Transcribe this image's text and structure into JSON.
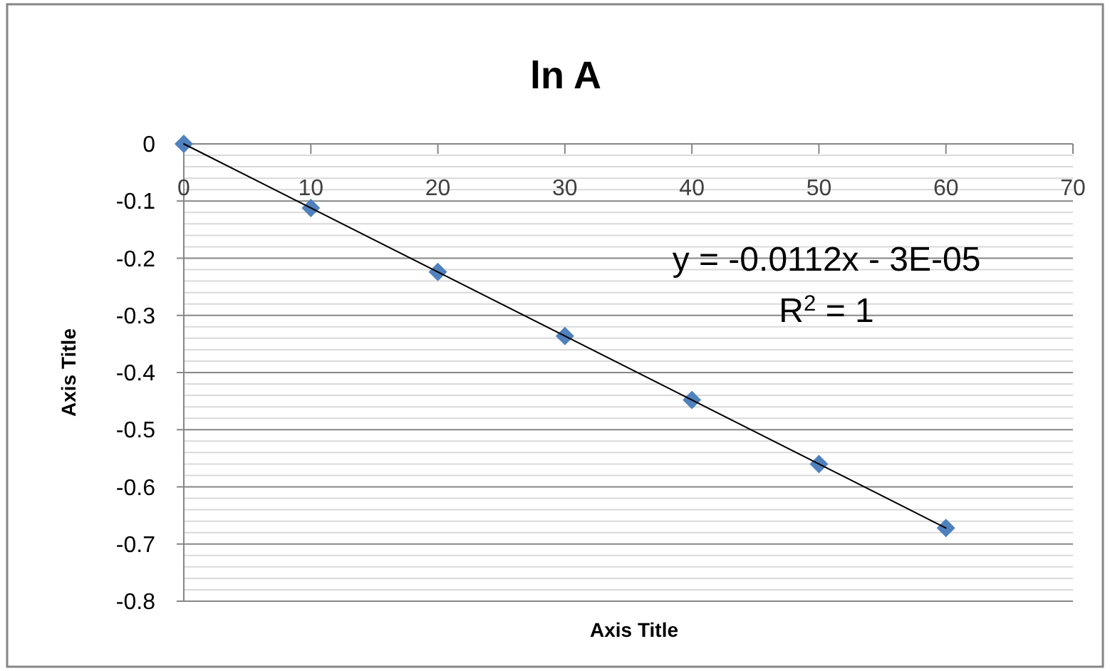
{
  "chart_data": {
    "type": "scatter",
    "title": "ln A",
    "xlabel": "Axis Title",
    "ylabel": "Axis Title",
    "annotations": [
      "y = -0.0112x - 3E-05",
      "R$^{2}$ = 1"
    ],
    "xlim": [
      0,
      70
    ],
    "xticks": [
      0,
      10,
      20,
      30,
      40,
      50,
      60,
      70
    ],
    "ylim": [
      -0.8,
      0
    ],
    "yticks": [
      0,
      {
        "value": -0.02,
        "label": null
      },
      {
        "value": -0.04,
        "label": null
      },
      {
        "value": -0.06,
        "label": null
      },
      {
        "value": -0.08,
        "label": null
      },
      -0.1,
      {
        "value": -0.12,
        "label": null
      },
      {
        "value": -0.14,
        "label": null
      },
      {
        "value": -0.16,
        "label": null
      },
      {
        "value": -0.18,
        "label": null
      },
      -0.2,
      {
        "value": -0.22,
        "label": null
      },
      {
        "value": -0.24,
        "label": null
      },
      {
        "value": -0.26,
        "label": null
      },
      {
        "value": -0.28,
        "label": null
      },
      -0.3,
      {
        "value": -0.32,
        "label": null
      },
      {
        "value": -0.34,
        "label": null
      },
      {
        "value": -0.36,
        "label": null
      },
      {
        "value": -0.38,
        "label": null
      },
      -0.4,
      {
        "value": -0.42,
        "label": null
      },
      {
        "value": -0.44,
        "label": null
      },
      {
        "value": -0.46,
        "label": null
      },
      {
        "value": -0.48,
        "label": null
      },
      -0.5,
      {
        "value": -0.52,
        "label": null
      },
      {
        "value": -0.54,
        "label": null
      },
      {
        "value": -0.56,
        "label": null
      },
      {
        "value": -0.58,
        "label": null
      },
      -0.6,
      {
        "value": -0.62,
        "label": null
      },
      {
        "value": -0.64,
        "label": null
      },
      {
        "value": -0.66,
        "label": null
      },
      {
        "value": -0.68,
        "label": null
      },
      -0.7,
      {
        "value": -0.72,
        "label": null
      },
      {
        "value": -0.74,
        "label": null
      },
      {
        "value": -0.76,
        "label": null
      },
      {
        "value": -0.78,
        "label": null
      },
      -0.8
    ],
    "grid": "y",
    "series": [
      {
        "color": "#4f81bd",
        "marker": "diamond",
        "x": [
          0,
          10,
          20,
          30,
          40,
          50,
          60
        ],
        "values": [
          0,
          -0.112,
          -0.224,
          -0.336,
          -0.448,
          -0.56,
          -0.672
        ]
      },
      {
        "type": "line",
        "color": "#000000",
        "marker": "none",
        "line_style": "solid",
        "x": [
          0,
          60
        ],
        "values": [
          0,
          -0.672
        ]
      }
    ]
  }
}
